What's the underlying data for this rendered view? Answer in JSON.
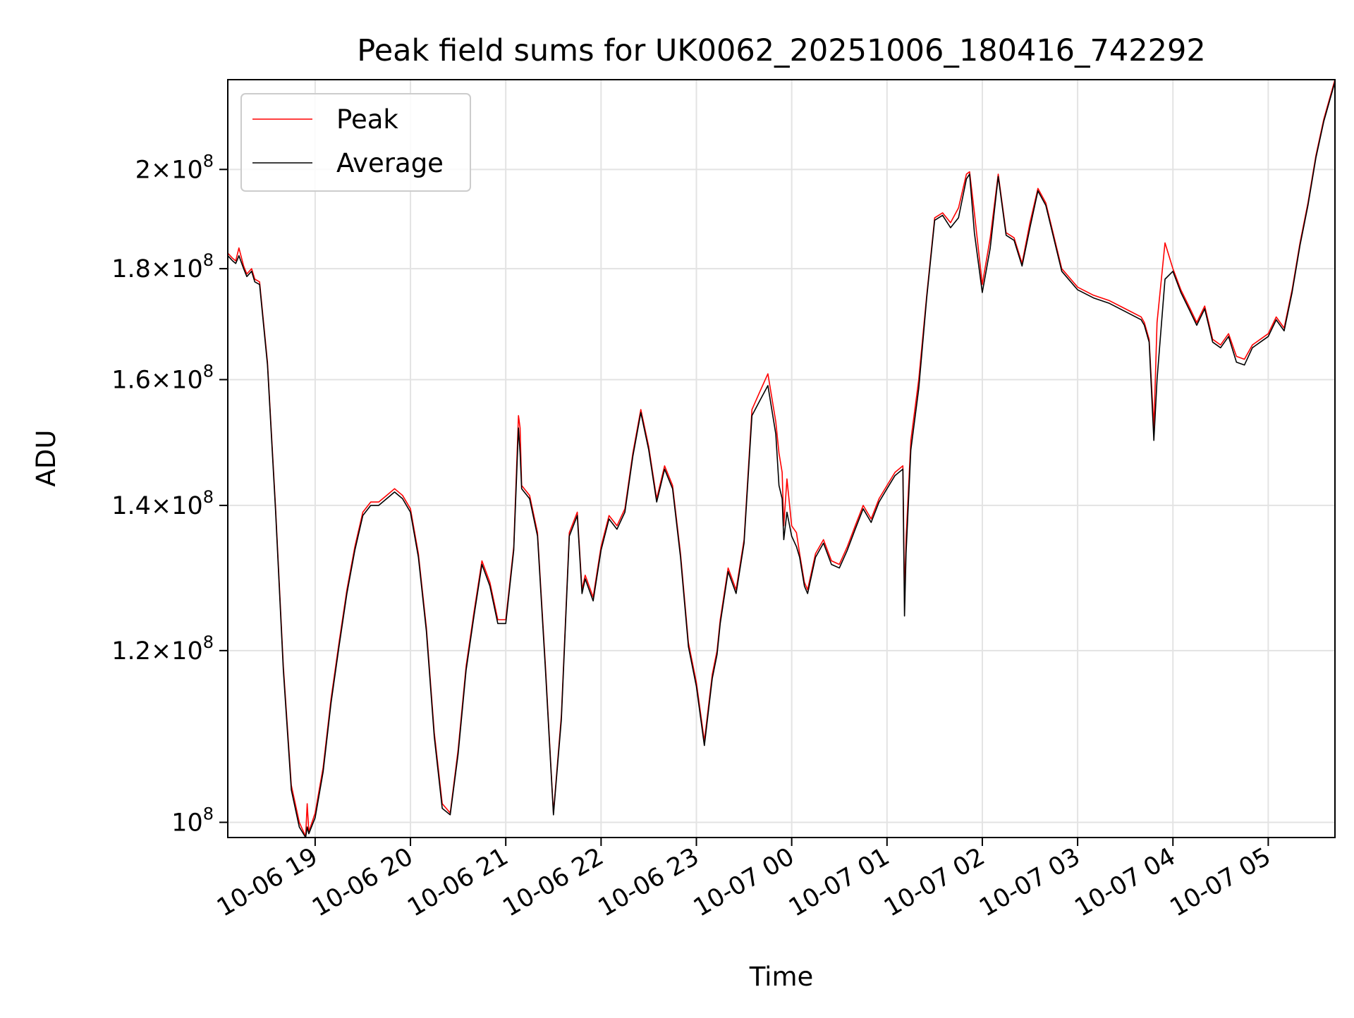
{
  "chart_data": {
    "type": "line",
    "title": "Peak field sums for UK0062_20251006_180416_742292",
    "xlabel": "Time",
    "ylabel": "ADU",
    "y_scale": "log",
    "ylim": [
      98400000,
      220000000
    ],
    "xlim": [
      "2025-10-06 18:05",
      "2025-10-07 05:42"
    ],
    "x_ticks": [
      {
        "t": "2025-10-06 19:00",
        "label": "10-06 19"
      },
      {
        "t": "2025-10-06 20:00",
        "label": "10-06 20"
      },
      {
        "t": "2025-10-06 21:00",
        "label": "10-06 21"
      },
      {
        "t": "2025-10-06 22:00",
        "label": "10-06 22"
      },
      {
        "t": "2025-10-06 23:00",
        "label": "10-06 23"
      },
      {
        "t": "2025-10-07 00:00",
        "label": "10-07 00"
      },
      {
        "t": "2025-10-07 01:00",
        "label": "10-07 01"
      },
      {
        "t": "2025-10-07 02:00",
        "label": "10-07 02"
      },
      {
        "t": "2025-10-07 03:00",
        "label": "10-07 03"
      },
      {
        "t": "2025-10-07 04:00",
        "label": "10-07 04"
      },
      {
        "t": "2025-10-07 05:00",
        "label": "10-07 05"
      }
    ],
    "y_ticks": [
      {
        "value": 100000000,
        "mantissa": "",
        "exp": "8"
      },
      {
        "value": 120000000,
        "mantissa": "1.2",
        "exp": "8"
      },
      {
        "value": 140000000,
        "mantissa": "1.4",
        "exp": "8"
      },
      {
        "value": 160000000,
        "mantissa": "1.6",
        "exp": "8"
      },
      {
        "value": 180000000,
        "mantissa": "1.8",
        "exp": "8"
      },
      {
        "value": 200000000,
        "mantissa": "2",
        "exp": "8"
      }
    ],
    "grid": true,
    "legend_position": "top-left",
    "series": [
      {
        "name": "Peak",
        "color": "#ff0000",
        "x": [
          "2025-10-06 18:05",
          "2025-10-06 18:08",
          "2025-10-06 18:10",
          "2025-10-06 18:12",
          "2025-10-06 18:15",
          "2025-10-06 18:17",
          "2025-10-06 18:20",
          "2025-10-06 18:22",
          "2025-10-06 18:25",
          "2025-10-06 18:30",
          "2025-10-06 18:35",
          "2025-10-06 18:40",
          "2025-10-06 18:45",
          "2025-10-06 18:50",
          "2025-10-06 18:54",
          "2025-10-06 18:55",
          "2025-10-06 18:56",
          "2025-10-06 19:00",
          "2025-10-06 19:05",
          "2025-10-06 19:10",
          "2025-10-06 19:15",
          "2025-10-06 19:20",
          "2025-10-06 19:25",
          "2025-10-06 19:30",
          "2025-10-06 19:35",
          "2025-10-06 19:40",
          "2025-10-06 19:45",
          "2025-10-06 19:50",
          "2025-10-06 19:55",
          "2025-10-06 20:00",
          "2025-10-06 20:05",
          "2025-10-06 20:10",
          "2025-10-06 20:15",
          "2025-10-06 20:20",
          "2025-10-06 20:25",
          "2025-10-06 20:30",
          "2025-10-06 20:35",
          "2025-10-06 20:40",
          "2025-10-06 20:45",
          "2025-10-06 20:50",
          "2025-10-06 20:55",
          "2025-10-06 21:00",
          "2025-10-06 21:05",
          "2025-10-06 21:08",
          "2025-10-06 21:09",
          "2025-10-06 21:10",
          "2025-10-06 21:15",
          "2025-10-06 21:20",
          "2025-10-06 21:25",
          "2025-10-06 21:30",
          "2025-10-06 21:35",
          "2025-10-06 21:40",
          "2025-10-06 21:45",
          "2025-10-06 21:48",
          "2025-10-06 21:50",
          "2025-10-06 21:55",
          "2025-10-06 22:00",
          "2025-10-06 22:05",
          "2025-10-06 22:10",
          "2025-10-06 22:15",
          "2025-10-06 22:20",
          "2025-10-06 22:25",
          "2025-10-06 22:30",
          "2025-10-06 22:35",
          "2025-10-06 22:40",
          "2025-10-06 22:45",
          "2025-10-06 22:50",
          "2025-10-06 22:55",
          "2025-10-06 23:00",
          "2025-10-06 23:05",
          "2025-10-06 23:10",
          "2025-10-06 23:13",
          "2025-10-06 23:15",
          "2025-10-06 23:20",
          "2025-10-06 23:25",
          "2025-10-06 23:30",
          "2025-10-06 23:35",
          "2025-10-06 23:40",
          "2025-10-06 23:45",
          "2025-10-06 23:50",
          "2025-10-06 23:52",
          "2025-10-06 23:54",
          "2025-10-06 23:55",
          "2025-10-06 23:57",
          "2025-10-07 00:00",
          "2025-10-07 00:03",
          "2025-10-07 00:05",
          "2025-10-07 00:08",
          "2025-10-07 00:10",
          "2025-10-07 00:15",
          "2025-10-07 00:20",
          "2025-10-07 00:25",
          "2025-10-07 00:30",
          "2025-10-07 00:35",
          "2025-10-07 00:40",
          "2025-10-07 00:45",
          "2025-10-07 00:50",
          "2025-10-07 00:55",
          "2025-10-07 01:00",
          "2025-10-07 01:05",
          "2025-10-07 01:10",
          "2025-10-07 01:11",
          "2025-10-07 01:12",
          "2025-10-07 01:15",
          "2025-10-07 01:20",
          "2025-10-07 01:25",
          "2025-10-07 01:30",
          "2025-10-07 01:35",
          "2025-10-07 01:40",
          "2025-10-07 01:45",
          "2025-10-07 01:50",
          "2025-10-07 01:52",
          "2025-10-07 01:55",
          "2025-10-07 02:00",
          "2025-10-07 02:05",
          "2025-10-07 02:10",
          "2025-10-07 02:15",
          "2025-10-07 02:20",
          "2025-10-07 02:25",
          "2025-10-07 02:30",
          "2025-10-07 02:35",
          "2025-10-07 02:40",
          "2025-10-07 02:50",
          "2025-10-07 03:00",
          "2025-10-07 03:10",
          "2025-10-07 03:20",
          "2025-10-07 03:30",
          "2025-10-07 03:40",
          "2025-10-07 03:42",
          "2025-10-07 03:45",
          "2025-10-07 03:48",
          "2025-10-07 03:50",
          "2025-10-07 03:55",
          "2025-10-07 04:00",
          "2025-10-07 04:05",
          "2025-10-07 04:10",
          "2025-10-07 04:15",
          "2025-10-07 04:20",
          "2025-10-07 04:25",
          "2025-10-07 04:30",
          "2025-10-07 04:35",
          "2025-10-07 04:40",
          "2025-10-07 04:45",
          "2025-10-07 04:50",
          "2025-10-07 04:55",
          "2025-10-07 05:00",
          "2025-10-07 05:05",
          "2025-10-07 05:10",
          "2025-10-07 05:15",
          "2025-10-07 05:20",
          "2025-10-07 05:25",
          "2025-10-07 05:30",
          "2025-10-07 05:35",
          "2025-10-07 05:42"
        ],
        "y": [
          183000000,
          182000000,
          181500000,
          184000000,
          180500000,
          179000000,
          180000000,
          178000000,
          177500000,
          163000000,
          140000000,
          118000000,
          104000000,
          100000000,
          98500000,
          102000000,
          99000000,
          101000000,
          106000000,
          114000000,
          121000000,
          128000000,
          134000000,
          139000000,
          140500000,
          140500000,
          141500000,
          142500000,
          141500000,
          139500000,
          133000000,
          123000000,
          110000000,
          102000000,
          101000000,
          108000000,
          118000000,
          125000000,
          132000000,
          129000000,
          124000000,
          124000000,
          134000000,
          154000000,
          152000000,
          143000000,
          141500000,
          136000000,
          118000000,
          101000000,
          112000000,
          136000000,
          139000000,
          128000000,
          130000000,
          127000000,
          134000000,
          138500000,
          137000000,
          139500000,
          148000000,
          155000000,
          149000000,
          141000000,
          146000000,
          143000000,
          133000000,
          121000000,
          116000000,
          109000000,
          117000000,
          120000000,
          124000000,
          131000000,
          128000000,
          135000000,
          155000000,
          158000000,
          161000000,
          153000000,
          148000000,
          145000000,
          137000000,
          144000000,
          137000000,
          136000000,
          133000000,
          129000000,
          128000000,
          133000000,
          135000000,
          132000000,
          131500000,
          134000000,
          137000000,
          140000000,
          138000000,
          141000000,
          143000000,
          145000000,
          146000000,
          127000000,
          135000000,
          150000000,
          160000000,
          175000000,
          190000000,
          191000000,
          189000000,
          192000000,
          199000000,
          199500000,
          191000000,
          177000000,
          186000000,
          199000000,
          187000000,
          186000000,
          181000000,
          189000000,
          196000000,
          193000000,
          180000000,
          176500000,
          175000000,
          174000000,
          172500000,
          171000000,
          170000000,
          167000000,
          152000000,
          170000000,
          185000000,
          180000000,
          176000000,
          173000000,
          170000000,
          173000000,
          167000000,
          166000000,
          168000000,
          164000000,
          163500000,
          166000000,
          167000000,
          168000000,
          171000000,
          169000000,
          176000000,
          185000000,
          193000000,
          203000000,
          211000000,
          220000000
        ]
      },
      {
        "name": "Average",
        "color": "#000000",
        "x": [
          "2025-10-06 18:05",
          "2025-10-06 18:08",
          "2025-10-06 18:10",
          "2025-10-06 18:12",
          "2025-10-06 18:15",
          "2025-10-06 18:17",
          "2025-10-06 18:20",
          "2025-10-06 18:22",
          "2025-10-06 18:25",
          "2025-10-06 18:30",
          "2025-10-06 18:35",
          "2025-10-06 18:40",
          "2025-10-06 18:45",
          "2025-10-06 18:50",
          "2025-10-06 18:54",
          "2025-10-06 18:55",
          "2025-10-06 18:56",
          "2025-10-06 19:00",
          "2025-10-06 19:05",
          "2025-10-06 19:10",
          "2025-10-06 19:15",
          "2025-10-06 19:20",
          "2025-10-06 19:25",
          "2025-10-06 19:30",
          "2025-10-06 19:35",
          "2025-10-06 19:40",
          "2025-10-06 19:45",
          "2025-10-06 19:50",
          "2025-10-06 19:55",
          "2025-10-06 20:00",
          "2025-10-06 20:05",
          "2025-10-06 20:10",
          "2025-10-06 20:15",
          "2025-10-06 20:20",
          "2025-10-06 20:25",
          "2025-10-06 20:30",
          "2025-10-06 20:35",
          "2025-10-06 20:40",
          "2025-10-06 20:45",
          "2025-10-06 20:50",
          "2025-10-06 20:55",
          "2025-10-06 21:00",
          "2025-10-06 21:05",
          "2025-10-06 21:08",
          "2025-10-06 21:09",
          "2025-10-06 21:10",
          "2025-10-06 21:15",
          "2025-10-06 21:20",
          "2025-10-06 21:25",
          "2025-10-06 21:30",
          "2025-10-06 21:35",
          "2025-10-06 21:40",
          "2025-10-06 21:45",
          "2025-10-06 21:48",
          "2025-10-06 21:50",
          "2025-10-06 21:55",
          "2025-10-06 22:00",
          "2025-10-06 22:05",
          "2025-10-06 22:10",
          "2025-10-06 22:15",
          "2025-10-06 22:20",
          "2025-10-06 22:25",
          "2025-10-06 22:30",
          "2025-10-06 22:35",
          "2025-10-06 22:40",
          "2025-10-06 22:45",
          "2025-10-06 22:50",
          "2025-10-06 22:55",
          "2025-10-06 23:00",
          "2025-10-06 23:05",
          "2025-10-06 23:10",
          "2025-10-06 23:13",
          "2025-10-06 23:15",
          "2025-10-06 23:20",
          "2025-10-06 23:25",
          "2025-10-06 23:30",
          "2025-10-06 23:35",
          "2025-10-06 23:40",
          "2025-10-06 23:45",
          "2025-10-06 23:50",
          "2025-10-06 23:52",
          "2025-10-06 23:54",
          "2025-10-06 23:55",
          "2025-10-06 23:57",
          "2025-10-07 00:00",
          "2025-10-07 00:03",
          "2025-10-07 00:05",
          "2025-10-07 00:08",
          "2025-10-07 00:10",
          "2025-10-07 00:15",
          "2025-10-07 00:20",
          "2025-10-07 00:25",
          "2025-10-07 00:30",
          "2025-10-07 00:35",
          "2025-10-07 00:40",
          "2025-10-07 00:45",
          "2025-10-07 00:50",
          "2025-10-07 00:55",
          "2025-10-07 01:00",
          "2025-10-07 01:05",
          "2025-10-07 01:10",
          "2025-10-07 01:11",
          "2025-10-07 01:12",
          "2025-10-07 01:15",
          "2025-10-07 01:20",
          "2025-10-07 01:25",
          "2025-10-07 01:30",
          "2025-10-07 01:35",
          "2025-10-07 01:40",
          "2025-10-07 01:45",
          "2025-10-07 01:50",
          "2025-10-07 01:52",
          "2025-10-07 01:55",
          "2025-10-07 02:00",
          "2025-10-07 02:05",
          "2025-10-07 02:10",
          "2025-10-07 02:15",
          "2025-10-07 02:20",
          "2025-10-07 02:25",
          "2025-10-07 02:30",
          "2025-10-07 02:35",
          "2025-10-07 02:40",
          "2025-10-07 02:50",
          "2025-10-07 03:00",
          "2025-10-07 03:10",
          "2025-10-07 03:20",
          "2025-10-07 03:30",
          "2025-10-07 03:40",
          "2025-10-07 03:42",
          "2025-10-07 03:45",
          "2025-10-07 03:48",
          "2025-10-07 03:50",
          "2025-10-07 03:55",
          "2025-10-07 04:00",
          "2025-10-07 04:05",
          "2025-10-07 04:10",
          "2025-10-07 04:15",
          "2025-10-07 04:20",
          "2025-10-07 04:25",
          "2025-10-07 04:30",
          "2025-10-07 04:35",
          "2025-10-07 04:40",
          "2025-10-07 04:45",
          "2025-10-07 04:50",
          "2025-10-07 04:55",
          "2025-10-07 05:00",
          "2025-10-07 05:05",
          "2025-10-07 05:10",
          "2025-10-07 05:15",
          "2025-10-07 05:20",
          "2025-10-07 05:25",
          "2025-10-07 05:30",
          "2025-10-07 05:35",
          "2025-10-07 05:42"
        ],
        "y": [
          182500000,
          181500000,
          181000000,
          182500000,
          180000000,
          178500000,
          179500000,
          177500000,
          177000000,
          162500000,
          139500000,
          117500000,
          103500000,
          99500000,
          98400000,
          99500000,
          98800000,
          100500000,
          105500000,
          113500000,
          120500000,
          127500000,
          133500000,
          138500000,
          140000000,
          140000000,
          141000000,
          142000000,
          141000000,
          139000000,
          132500000,
          122500000,
          109500000,
          101500000,
          100800000,
          107500000,
          117500000,
          124500000,
          131500000,
          128500000,
          123500000,
          123500000,
          133500000,
          152000000,
          148000000,
          142500000,
          141000000,
          135500000,
          117500000,
          100800000,
          111500000,
          135500000,
          138500000,
          127500000,
          129500000,
          126500000,
          133500000,
          138000000,
          136500000,
          139000000,
          147500000,
          154500000,
          148500000,
          140500000,
          145500000,
          142500000,
          132500000,
          120500000,
          115500000,
          108500000,
          116500000,
          119500000,
          123500000,
          130500000,
          127500000,
          134500000,
          154000000,
          156500000,
          159000000,
          151000000,
          143000000,
          141000000,
          135000000,
          139000000,
          135500000,
          134000000,
          132500000,
          128500000,
          127500000,
          132500000,
          134500000,
          131500000,
          131000000,
          133500000,
          136500000,
          139500000,
          137500000,
          140500000,
          142500000,
          144500000,
          145500000,
          124500000,
          133000000,
          148500000,
          158500000,
          174500000,
          189500000,
          190500000,
          188000000,
          190000000,
          198000000,
          199000000,
          187000000,
          175500000,
          184000000,
          198500000,
          186500000,
          185500000,
          180500000,
          188000000,
          195500000,
          192500000,
          179500000,
          176000000,
          174500000,
          173500000,
          172000000,
          170500000,
          169500000,
          166500000,
          150000000,
          160000000,
          178000000,
          179500000,
          175500000,
          172500000,
          169500000,
          172500000,
          166500000,
          165500000,
          167500000,
          163000000,
          162500000,
          165500000,
          166500000,
          167500000,
          170500000,
          168500000,
          175500000,
          184500000,
          192500000,
          202500000,
          210500000,
          219500000
        ]
      }
    ]
  }
}
